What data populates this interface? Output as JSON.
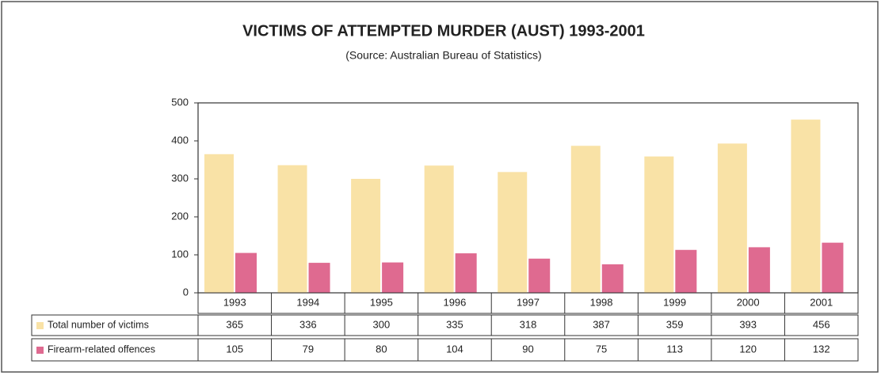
{
  "chart_data": {
    "type": "bar",
    "title": "VICTIMS OF ATTEMPTED MURDER (AUST) 1993-2001",
    "subtitle": "(Source: Australian Bureau of Statistics)",
    "categories": [
      "1993",
      "1994",
      "1995",
      "1996",
      "1997",
      "1998",
      "1999",
      "2000",
      "2001"
    ],
    "series": [
      {
        "name": "Total number of victims",
        "color": "#f9e2a6",
        "values": [
          365,
          336,
          300,
          335,
          318,
          387,
          359,
          393,
          456
        ]
      },
      {
        "name": "Firearm-related offences",
        "color": "#df6a90",
        "values": [
          105,
          79,
          80,
          104,
          90,
          75,
          113,
          120,
          132
        ]
      }
    ],
    "ylim": [
      0,
      500
    ],
    "yticks": [
      0,
      100,
      200,
      300,
      400,
      500
    ],
    "grid": false
  }
}
